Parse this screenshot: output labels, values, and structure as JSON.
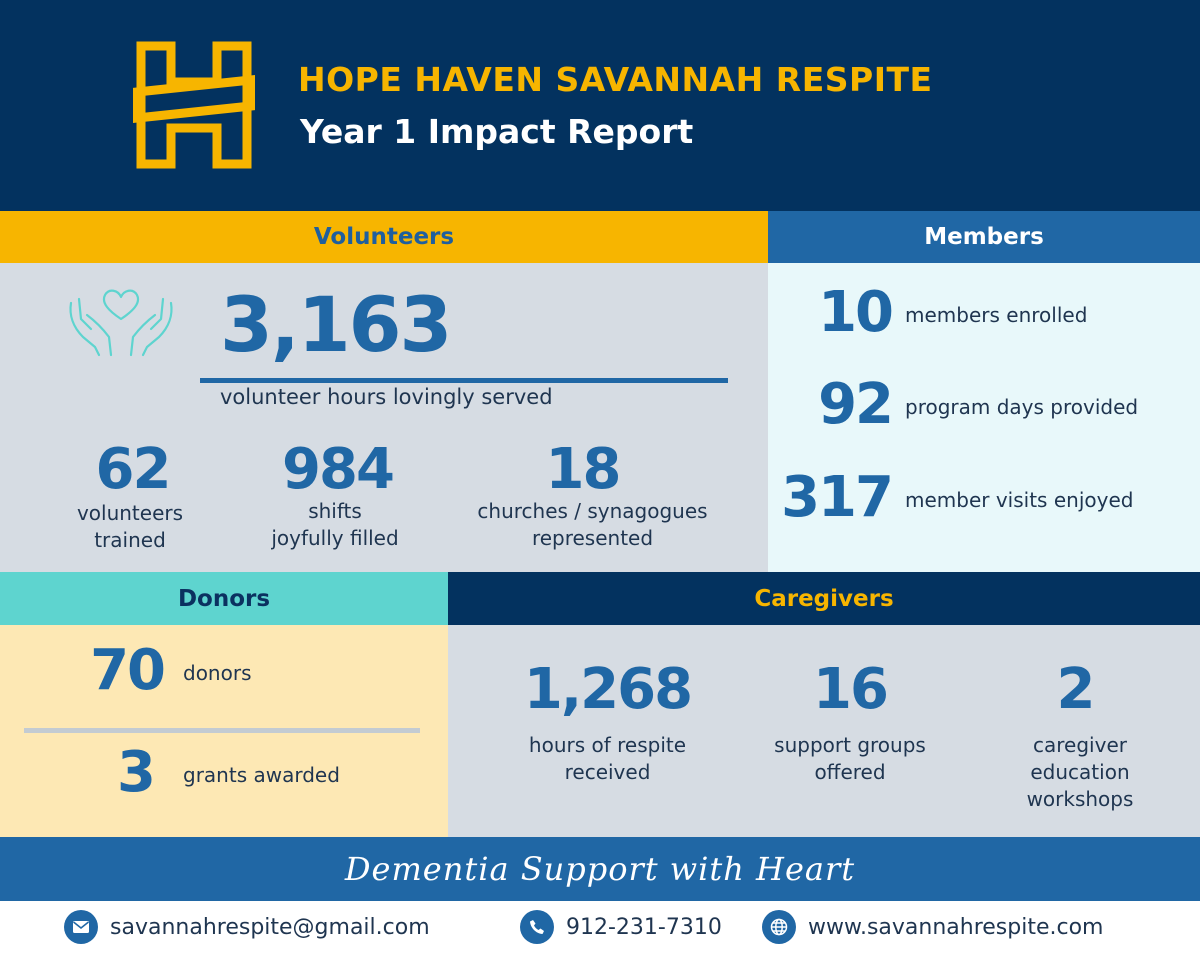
{
  "header": {
    "title": "HOPE HAVEN SAVANNAH RESPITE",
    "subtitle": "Year 1 Impact Report",
    "logo_icon": "h-monogram-logo",
    "colors": {
      "navy": "#03325f",
      "gold": "#f7b500",
      "blue": "#2067a5",
      "teal": "#5ed4cf"
    }
  },
  "volunteers": {
    "heading": "Volunteers",
    "icon": "heart-hands-icon",
    "hours_value": "3,163",
    "hours_label": "volunteer hours lovingly served",
    "stats": [
      {
        "value": "62",
        "label_line1": "volunteers",
        "label_line2": "trained"
      },
      {
        "value": "984",
        "label_line1": "shifts",
        "label_line2": "joyfully filled"
      },
      {
        "value": "18",
        "label_line1": "churches / synagogues",
        "label_line2": "represented"
      }
    ]
  },
  "members": {
    "heading": "Members",
    "stats": [
      {
        "value": "10",
        "label": "members enrolled"
      },
      {
        "value": "92",
        "label": "program days provided"
      },
      {
        "value": "317",
        "label": "member visits enjoyed"
      }
    ]
  },
  "donors": {
    "heading": "Donors",
    "stats": [
      {
        "value": "70",
        "label": "donors"
      },
      {
        "value": "3",
        "label": "grants awarded"
      }
    ]
  },
  "caregivers": {
    "heading": "Caregivers",
    "stats": [
      {
        "value": "1,268",
        "lines": [
          "hours of respite",
          "received"
        ]
      },
      {
        "value": "16",
        "lines": [
          "support groups",
          "offered"
        ]
      },
      {
        "value": "2",
        "lines": [
          "caregiver",
          "education",
          "workshops"
        ]
      }
    ]
  },
  "tagline": "Dementia Support with Heart",
  "contact": {
    "email": "savannahrespite@gmail.com",
    "phone": "912-231-7310",
    "website": "www.savannahrespite.com",
    "icons": [
      "email-icon",
      "phone-icon",
      "globe-icon"
    ]
  }
}
